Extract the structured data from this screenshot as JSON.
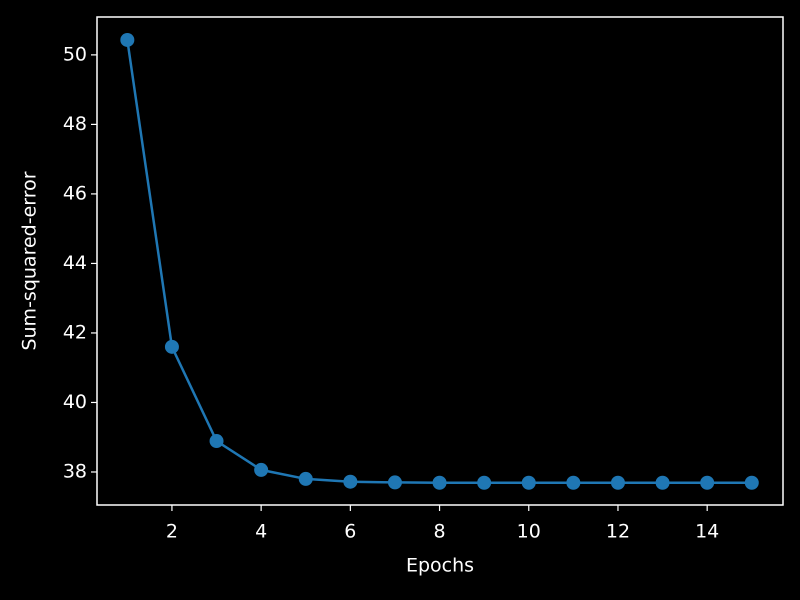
{
  "chart_data": {
    "type": "line",
    "x_label": "Epochs",
    "y_label": "Sum-squared-error",
    "x": [
      1,
      2,
      3,
      4,
      5,
      6,
      7,
      8,
      9,
      10,
      11,
      12,
      13,
      14,
      15
    ],
    "series": [
      {
        "color": "#1f77b4",
        "values": [
          50.43,
          41.6,
          38.89,
          38.06,
          37.8,
          37.72,
          37.7,
          37.69,
          37.69,
          37.69,
          37.69,
          37.69,
          37.69,
          37.69,
          37.69
        ]
      }
    ],
    "xlim": [
      0.32,
      15.7
    ],
    "xticks": [
      2,
      4,
      6,
      8,
      10,
      12,
      14
    ],
    "ylim": [
      37.05,
      51.09
    ],
    "yticks": [
      38,
      40,
      42,
      44,
      46,
      48,
      50
    ],
    "markers": true,
    "background": "#000000",
    "foreground": "#ffffff"
  }
}
